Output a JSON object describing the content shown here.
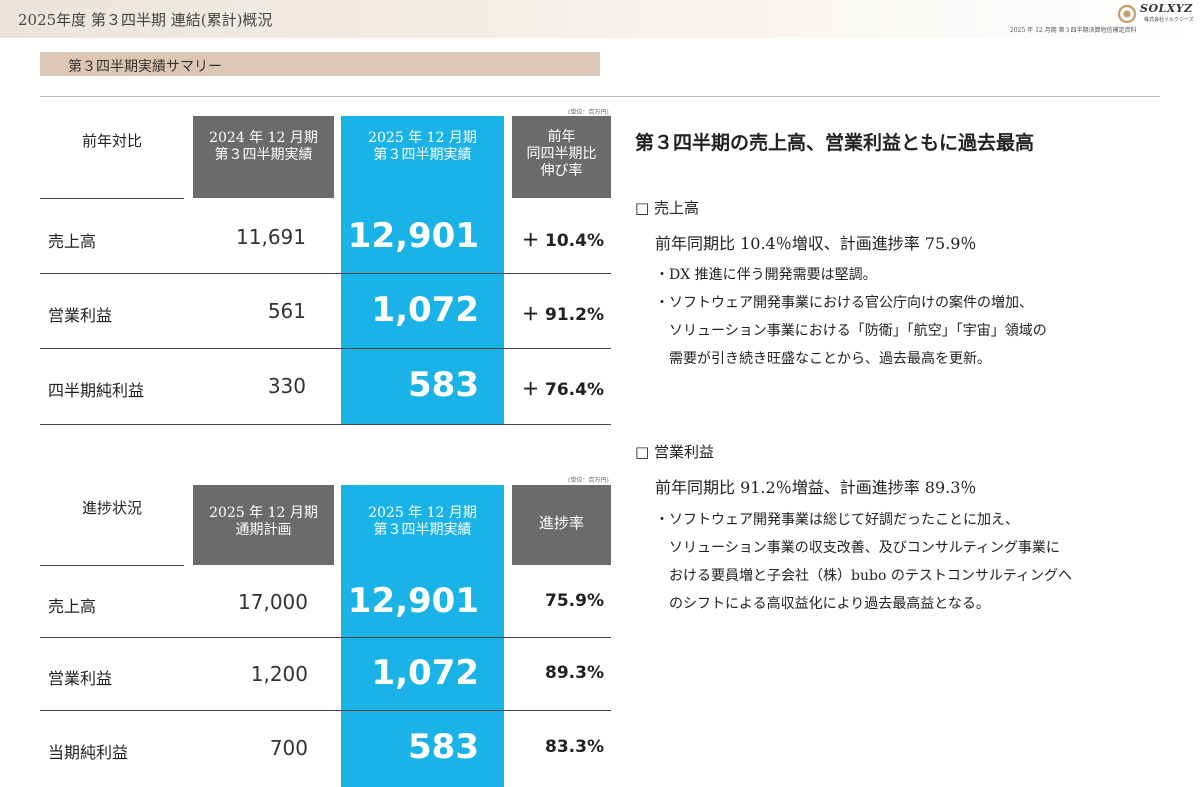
{
  "header": {
    "title": "2025年度 第３四半期 連結(累計)概況",
    "logo_name": "SOLXYZ",
    "logo_sub": "株式会社ソルクシーズ",
    "note": "2025 年 12 月期 第３四半期決算短信補足資料"
  },
  "section_label": "第３四半期実績サマリー",
  "table1": {
    "unit": "(単位：百万円)",
    "corner": "前年対比",
    "col_prev_l1": "2024 年 12 月期",
    "col_prev_l2": "第３四半期実績",
    "col_cur_l1": "2025 年 12 月期",
    "col_cur_l2": "第３四半期実績",
    "col_rate_l1": "前年",
    "col_rate_l2": "同四半期比",
    "col_rate_l3": "伸び率",
    "rows": [
      {
        "label": "売上高",
        "prev": "11,691",
        "cur": "12,901",
        "rate": "＋ 10.4%"
      },
      {
        "label": "営業利益",
        "prev": "561",
        "cur": "1,072",
        "rate": "＋ 91.2%"
      },
      {
        "label": "四半期純利益",
        "prev": "330",
        "cur": "583",
        "rate": "＋ 76.4%"
      }
    ]
  },
  "table2": {
    "unit": "(単位：百万円)",
    "corner": "進捗状況",
    "col_plan_l1": "2025 年 12 月期",
    "col_plan_l2": "通期計画",
    "col_cur_l1": "2025 年 12 月期",
    "col_cur_l2": "第３四半期実績",
    "col_rate": "進捗率",
    "rows": [
      {
        "label": "売上高",
        "plan": "17,000",
        "cur": "12,901",
        "rate": "75.9%"
      },
      {
        "label": "営業利益",
        "plan": "1,200",
        "cur": "1,072",
        "rate": "89.3%"
      },
      {
        "label": "当期純利益",
        "plan": "700",
        "cur": "583",
        "rate": "83.3%"
      }
    ]
  },
  "right": {
    "title": "第３四半期の売上高、営業利益ともに過去最高",
    "sales": {
      "head": "□ 売上高",
      "summary": "前年同期比 10.4％増収、計画進捗率 75.9％",
      "bullets": [
        "・DX 推進に伴う開発需要は堅調。",
        "・ソフトウェア開発事業における官公庁向けの案件の増加、",
        "　ソリューション事業における「防衛」「航空」「宇宙」領域の",
        "　需要が引き続き旺盛なことから、過去最高を更新。"
      ]
    },
    "op": {
      "head": "□ 営業利益",
      "summary": "前年同期比 91.2％増益、計画進捗率 89.3％",
      "bullets": [
        "・ソフトウェア開発事業は総じて好調だったことに加え、",
        "　ソリューション事業の収支改善、及びコンサルティング事業に",
        "　おける要員増と子会社（株）bubo のテストコンサルティングへ",
        "　のシフトによる高収益化により過去最高益となる。"
      ]
    }
  },
  "colors": {
    "accent": "#1ab3e8",
    "header_gray": "#6b6b6b",
    "section_bar": "#ddc7b4"
  }
}
